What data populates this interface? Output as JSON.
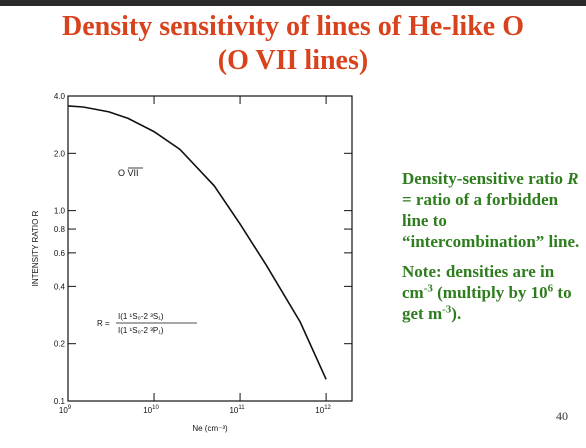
{
  "slide": {
    "title_line1": "Density sensitivity of lines of He-like O",
    "title_line2": "(O VII lines)",
    "note1_a": "Density-sensitive ratio ",
    "note1_r": "R",
    "note1_b": " = ratio of a forbidden line to “intercombination” line.",
    "note2_a": "Note: densities are in cm",
    "note2_exp1": "-3",
    "note2_b": " (multiply by 10",
    "note2_exp2": "6",
    "note2_c": " to get m",
    "note2_exp3": "-3",
    "note2_d": ").",
    "page_number": "40"
  },
  "chart_data": {
    "type": "line",
    "title": "",
    "xlabel": "Ne (cm⁻³)",
    "ylabel": "INTENSITY RATIO  R",
    "x_scale": "log",
    "y_scale": "log",
    "xlim": [
      1000000000.0,
      2000000000000.0
    ],
    "ylim": [
      0.1,
      4.0
    ],
    "x_ticks": [
      {
        "value": 1000000000.0,
        "label": "10",
        "exp": "9"
      },
      {
        "value": 10000000000.0,
        "label": "10",
        "exp": "10"
      },
      {
        "value": 100000000000.0,
        "label": "10",
        "exp": "11"
      },
      {
        "value": 1000000000000.0,
        "label": "10",
        "exp": "12"
      }
    ],
    "y_ticks": [
      {
        "value": 0.1,
        "label": "0.1"
      },
      {
        "value": 0.2,
        "label": "0.2"
      },
      {
        "value": 0.4,
        "label": "0.4"
      },
      {
        "value": 0.6,
        "label": "0.6"
      },
      {
        "value": 0.8,
        "label": "0.8"
      },
      {
        "value": 1.0,
        "label": "1.0"
      },
      {
        "value": 2.0,
        "label": "2.0"
      },
      {
        "value": 4.0,
        "label": "4.0"
      }
    ],
    "grid": false,
    "annotation": "O VII",
    "formula_prefix": "R =",
    "formula_numerator": "I(1 ¹S₀-2 ³S₁)",
    "formula_denominator": "I(1 ¹S₀-2 ³P₁)",
    "series": [
      {
        "x": [
          1000000000.0,
          1500000000.0,
          2000000000.0,
          3000000000.0,
          5000000000.0,
          10000000000.0,
          20000000000.0,
          50000000000.0,
          100000000000.0,
          200000000000.0,
          500000000000.0,
          1000000000000.0
        ],
        "y": [
          3.55,
          3.5,
          3.42,
          3.3,
          3.05,
          2.6,
          2.1,
          1.35,
          0.85,
          0.52,
          0.26,
          0.13
        ]
      }
    ]
  }
}
